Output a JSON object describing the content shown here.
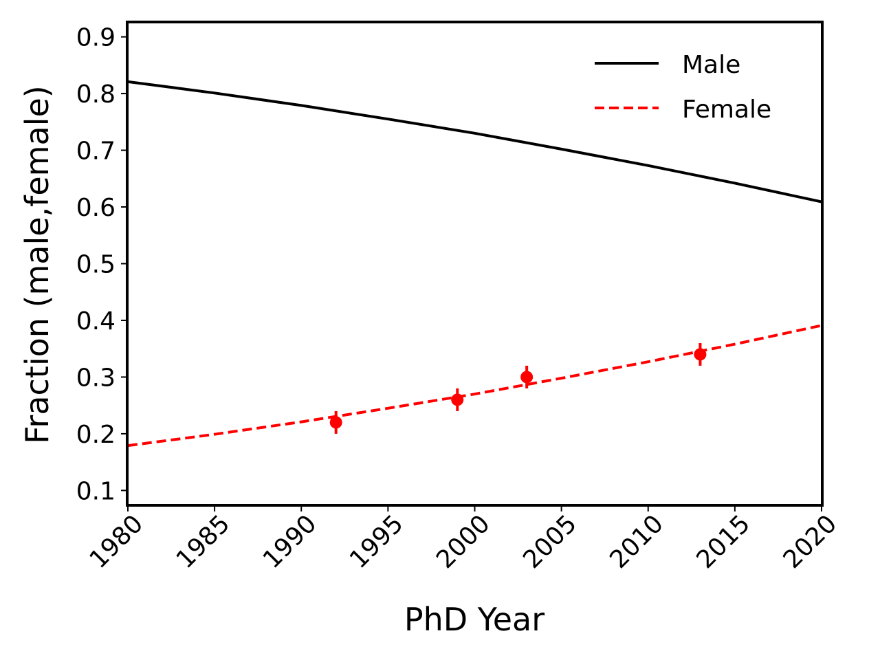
{
  "chart_data": {
    "type": "line",
    "title": "",
    "xlabel": "PhD Year",
    "ylabel": "Fraction (male,female)",
    "xlim": [
      1980,
      2020
    ],
    "ylim": [
      0.075,
      0.925
    ],
    "xticks": [
      1980,
      1985,
      1990,
      1995,
      2000,
      2005,
      2010,
      2015,
      2020
    ],
    "yticks": [
      0.1,
      0.2,
      0.3,
      0.4,
      0.5,
      0.6,
      0.7,
      0.8,
      0.9
    ],
    "xtick_labels": [
      "1980",
      "1985",
      "1990",
      "1995",
      "2000",
      "2005",
      "2010",
      "2015",
      "2020"
    ],
    "ytick_labels": [
      "0.1",
      "0.2",
      "0.3",
      "0.4",
      "0.5",
      "0.6",
      "0.7",
      "0.8",
      "0.9"
    ],
    "grid": false,
    "legend_position": "top-right",
    "series": [
      {
        "name": "Male",
        "style": "solid",
        "color": "#000000",
        "x": [
          1980,
          1985,
          1990,
          1995,
          2000,
          2005,
          2010,
          2015,
          2020
        ],
        "y": [
          0.821,
          0.801,
          0.779,
          0.755,
          0.73,
          0.702,
          0.673,
          0.642,
          0.609
        ]
      },
      {
        "name": "Female",
        "style": "dashed",
        "color": "#ff0000",
        "x": [
          1980,
          1985,
          1990,
          1995,
          2000,
          2005,
          2010,
          2015,
          2020
        ],
        "y": [
          0.179,
          0.199,
          0.221,
          0.245,
          0.27,
          0.298,
          0.327,
          0.358,
          0.391
        ]
      }
    ],
    "observations": {
      "color": "#ff0000",
      "points": [
        {
          "x": 1992,
          "y": 0.22,
          "err": 0.02
        },
        {
          "x": 1999,
          "y": 0.26,
          "err": 0.02
        },
        {
          "x": 2003,
          "y": 0.3,
          "err": 0.02
        },
        {
          "x": 2013,
          "y": 0.34,
          "err": 0.02
        }
      ]
    }
  }
}
